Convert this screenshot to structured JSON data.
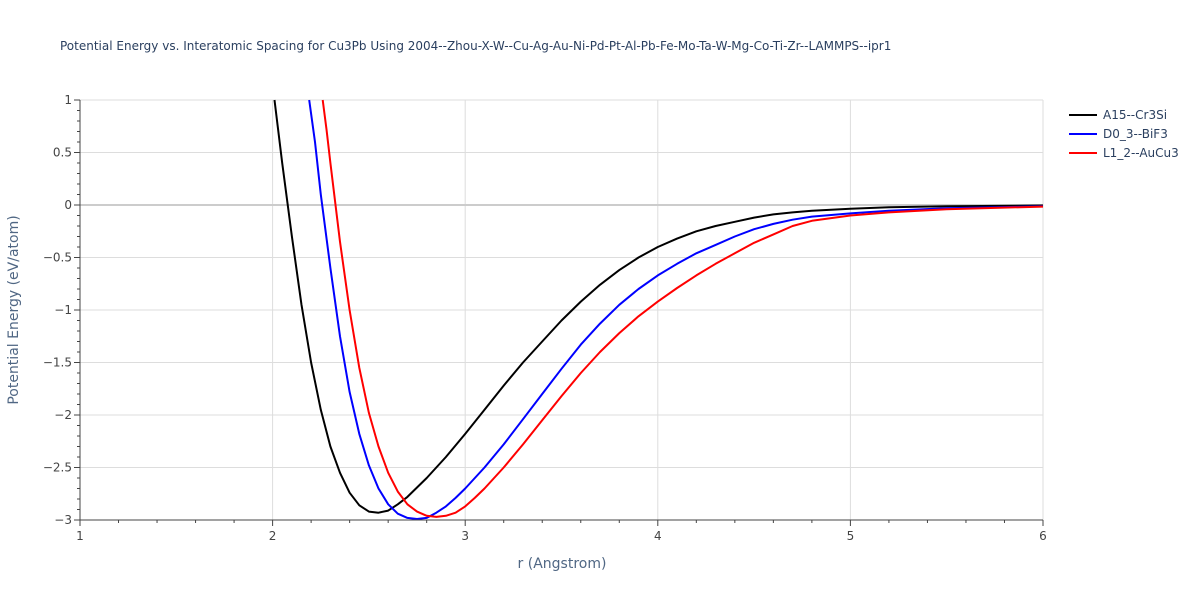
{
  "chart_data": {
    "type": "line",
    "title": "Potential Energy vs. Interatomic Spacing for Cu3Pb Using 2004--Zhou-X-W--Cu-Ag-Au-Ni-Pd-Pt-Al-Pb-Fe-Mo-Ta-W-Mg-Co-Ti-Zr--LAMMPS--ipr1",
    "xlabel": "r (Angstrom)",
    "ylabel": "Potential Energy (eV/atom)",
    "xlim": [
      1,
      6
    ],
    "ylim": [
      -3,
      1
    ],
    "xticks": [
      "1",
      "2",
      "3",
      "4",
      "5",
      "6"
    ],
    "yticks": [
      "1",
      "0.5",
      "0",
      "−0.5",
      "−1",
      "−1.5",
      "−2",
      "−2.5",
      "−3"
    ],
    "grid": true,
    "legend_position": "top-right",
    "series": [
      {
        "name": "A15--Cr3Si",
        "color": "#000000",
        "x": [
          2.01,
          2.05,
          2.1,
          2.15,
          2.2,
          2.25,
          2.3,
          2.35,
          2.4,
          2.45,
          2.5,
          2.55,
          2.6,
          2.65,
          2.7,
          2.8,
          2.9,
          3.0,
          3.1,
          3.2,
          3.3,
          3.4,
          3.5,
          3.6,
          3.7,
          3.8,
          3.9,
          4.0,
          4.1,
          4.2,
          4.3,
          4.4,
          4.5,
          4.6,
          4.7,
          4.8,
          5.0,
          5.2,
          5.5,
          6.0
        ],
        "y": [
          1.0,
          0.4,
          -0.3,
          -0.95,
          -1.5,
          -1.95,
          -2.3,
          -2.55,
          -2.74,
          -2.86,
          -2.92,
          -2.93,
          -2.91,
          -2.85,
          -2.78,
          -2.6,
          -2.4,
          -2.18,
          -1.95,
          -1.72,
          -1.5,
          -1.3,
          -1.1,
          -0.92,
          -0.76,
          -0.62,
          -0.5,
          -0.4,
          -0.32,
          -0.25,
          -0.2,
          -0.16,
          -0.12,
          -0.09,
          -0.07,
          -0.055,
          -0.035,
          -0.022,
          -0.012,
          -0.005
        ]
      },
      {
        "name": "D0_3--BiF3",
        "color": "#0000ff",
        "x": [
          2.19,
          2.22,
          2.25,
          2.3,
          2.35,
          2.4,
          2.45,
          2.5,
          2.55,
          2.6,
          2.65,
          2.7,
          2.75,
          2.8,
          2.85,
          2.9,
          2.95,
          3.0,
          3.1,
          3.2,
          3.3,
          3.4,
          3.5,
          3.6,
          3.7,
          3.8,
          3.9,
          4.0,
          4.1,
          4.2,
          4.3,
          4.4,
          4.5,
          4.6,
          4.7,
          4.8,
          5.0,
          5.2,
          5.5,
          6.0
        ],
        "y": [
          1.0,
          0.6,
          0.1,
          -0.6,
          -1.25,
          -1.78,
          -2.18,
          -2.48,
          -2.7,
          -2.85,
          -2.94,
          -2.98,
          -2.99,
          -2.98,
          -2.93,
          -2.87,
          -2.79,
          -2.7,
          -2.5,
          -2.28,
          -2.04,
          -1.8,
          -1.56,
          -1.33,
          -1.13,
          -0.95,
          -0.8,
          -0.67,
          -0.56,
          -0.46,
          -0.38,
          -0.3,
          -0.23,
          -0.18,
          -0.14,
          -0.11,
          -0.08,
          -0.055,
          -0.03,
          -0.012
        ]
      },
      {
        "name": "L1_2--AuCu3",
        "color": "#ff0000",
        "x": [
          2.26,
          2.28,
          2.3,
          2.35,
          2.4,
          2.45,
          2.5,
          2.55,
          2.6,
          2.65,
          2.7,
          2.75,
          2.8,
          2.85,
          2.9,
          2.95,
          3.0,
          3.05,
          3.1,
          3.2,
          3.3,
          3.4,
          3.5,
          3.6,
          3.7,
          3.8,
          3.9,
          4.0,
          4.1,
          4.2,
          4.3,
          4.4,
          4.5,
          4.6,
          4.7,
          4.8,
          5.0,
          5.2,
          5.5,
          6.0
        ],
        "y": [
          1.0,
          0.72,
          0.4,
          -0.35,
          -1.0,
          -1.55,
          -1.98,
          -2.3,
          -2.55,
          -2.73,
          -2.85,
          -2.92,
          -2.96,
          -2.97,
          -2.96,
          -2.93,
          -2.87,
          -2.79,
          -2.7,
          -2.5,
          -2.28,
          -2.05,
          -1.82,
          -1.6,
          -1.4,
          -1.22,
          -1.06,
          -0.92,
          -0.79,
          -0.67,
          -0.56,
          -0.46,
          -0.36,
          -0.28,
          -0.2,
          -0.15,
          -0.1,
          -0.07,
          -0.04,
          -0.015
        ]
      }
    ]
  }
}
